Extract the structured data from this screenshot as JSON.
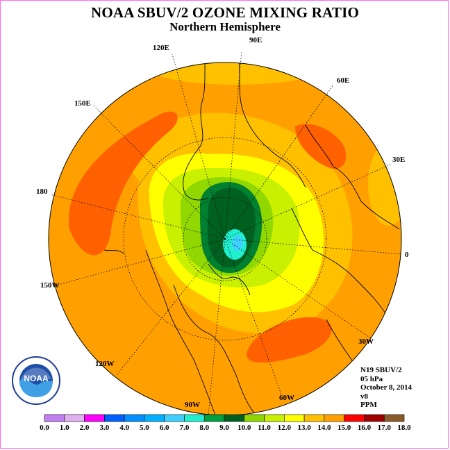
{
  "title": "NOAA SBUV/2 OZONE MIXING RATIO",
  "subtitle": "Northern Hemisphere",
  "longitude_labels": [
    {
      "text": "90E"
    },
    {
      "text": "60E"
    },
    {
      "text": "30E"
    },
    {
      "text": "0"
    },
    {
      "text": "30W"
    },
    {
      "text": "60W"
    },
    {
      "text": "90W"
    },
    {
      "text": "120W"
    },
    {
      "text": "150W"
    },
    {
      "text": "180"
    },
    {
      "text": "150E"
    },
    {
      "text": "120E"
    }
  ],
  "info": {
    "instrument": "N19 SBUV/2",
    "level": "05 hPa",
    "date": "October 8, 2014",
    "version": "v8",
    "units": "PPM"
  },
  "logo_text": "NOAA",
  "colorbar": {
    "ticks": [
      "0.0",
      "1.0",
      "2.0",
      "3.0",
      "4.0",
      "5.0",
      "6.0",
      "7.0",
      "8.0",
      "9.0",
      "10.0",
      "11.0",
      "12.0",
      "13.0",
      "14.0",
      "15.0",
      "16.0",
      "17.0",
      "18.0"
    ],
    "colors": [
      "#c080f0",
      "#e0b0f0",
      "#ff00ff",
      "#3c00ff",
      "#0060ff",
      "#0090ff",
      "#00b0ff",
      "#40d0ff",
      "#20f0d0",
      "#00a040",
      "#008030",
      "#006020",
      "#90d800",
      "#c8f000",
      "#ffff00",
      "#ffc000",
      "#ffa000",
      "#ff6000",
      "#ff0000",
      "#a00000",
      "#8b5a2b"
    ]
  },
  "field_colors": {
    "orange": "#ffa000",
    "dark_orange": "#ff6000",
    "light_orange": "#ffc000",
    "yellow": "#ffff00",
    "yellow_green": "#c8f000",
    "light_green": "#90d800",
    "green": "#008030",
    "dark_green": "#006020",
    "cyan": "#40d0ff",
    "aqua": "#20f0d0"
  }
}
